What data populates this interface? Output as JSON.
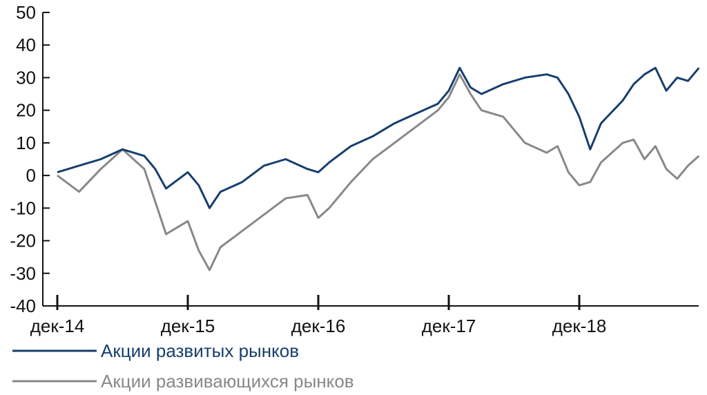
{
  "chart_data": {
    "type": "line",
    "title": "",
    "xlabel": "",
    "ylabel": "",
    "ylim": [
      -40,
      50
    ],
    "yticks": [
      -40,
      -30,
      -20,
      -10,
      0,
      10,
      20,
      30,
      40,
      50
    ],
    "xticks": [
      "дек-14",
      "дек-15",
      "дек-16",
      "дек-17",
      "дек-18"
    ],
    "xlim": [
      "2014-12",
      "2019-11"
    ],
    "grid": false,
    "legend_position": "bottom-left",
    "x": [
      "2014-12",
      "2015-02",
      "2015-04",
      "2015-06",
      "2015-08",
      "2015-09",
      "2015-10",
      "2015-12",
      "2016-01",
      "2016-02",
      "2016-03",
      "2016-05",
      "2016-07",
      "2016-09",
      "2016-11",
      "2016-12",
      "2017-01",
      "2017-03",
      "2017-05",
      "2017-07",
      "2017-09",
      "2017-11",
      "2017-12",
      "2018-01",
      "2018-02",
      "2018-03",
      "2018-05",
      "2018-07",
      "2018-09",
      "2018-10",
      "2018-11",
      "2018-12",
      "2019-01",
      "2019-02",
      "2019-04",
      "2019-05",
      "2019-06",
      "2019-07",
      "2019-08",
      "2019-09",
      "2019-10",
      "2019-11"
    ],
    "series": [
      {
        "name": "Акции развитых рынков",
        "color": "#173e6e",
        "values": [
          1,
          3,
          5,
          8,
          6,
          2,
          -4,
          1,
          -3,
          -10,
          -5,
          -2,
          3,
          5,
          2,
          1,
          4,
          9,
          12,
          16,
          19,
          22,
          26,
          33,
          27,
          25,
          28,
          30,
          31,
          30,
          25,
          18,
          8,
          16,
          23,
          28,
          31,
          33,
          26,
          30,
          29,
          33
        ]
      },
      {
        "name": "Акции развивающихся рынков",
        "color": "#888888",
        "values": [
          0,
          -5,
          2,
          8,
          2,
          -8,
          -18,
          -14,
          -23,
          -29,
          -22,
          -17,
          -12,
          -7,
          -6,
          -13,
          -10,
          -2,
          5,
          10,
          15,
          20,
          24,
          31,
          25,
          20,
          18,
          10,
          7,
          9,
          1,
          -3,
          -2,
          4,
          10,
          11,
          5,
          9,
          2,
          -1,
          3,
          6
        ]
      }
    ]
  }
}
